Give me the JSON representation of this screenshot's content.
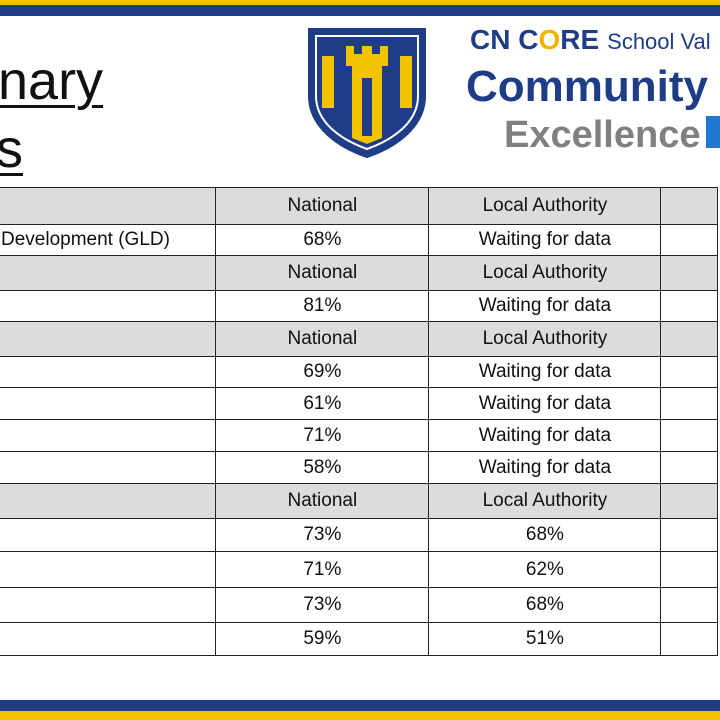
{
  "title": {
    "line1": "nary",
    "line2": "s"
  },
  "brand": {
    "line1_c": "CN C",
    "line1_o": "O",
    "line1_re": "RE",
    "line1_rest": "School Val",
    "line2": "Community",
    "line3": "Excellence",
    "colors": {
      "navy": "#1f3d86",
      "gold": "#f3c300",
      "grey": "#808080",
      "accent_blue": "#1f78d1"
    }
  },
  "table": {
    "rows": [
      {
        "type": "header",
        "label": "",
        "national": "National",
        "la": "Local Authority",
        "school": ""
      },
      {
        "type": "data",
        "label": "Development (GLD)",
        "national": "68%",
        "la": "Waiting for data",
        "school": ""
      },
      {
        "type": "header",
        "label": "",
        "national": "National",
        "la": "Local Authority",
        "school": ""
      },
      {
        "type": "data",
        "label": "",
        "national": "81%",
        "la": "Waiting for data",
        "school": ""
      },
      {
        "type": "header",
        "label": "",
        "national": "National",
        "la": "Local Authority",
        "school": ""
      },
      {
        "type": "data",
        "label": "",
        "national": "69%",
        "la": "Waiting for data",
        "school": ""
      },
      {
        "type": "data",
        "label": "",
        "national": "61%",
        "la": "Waiting for data",
        "school": ""
      },
      {
        "type": "data",
        "label": "",
        "national": "71%",
        "la": "Waiting for data",
        "school": ""
      },
      {
        "type": "data",
        "label": "",
        "national": "58%",
        "la": "Waiting for data",
        "school": ""
      },
      {
        "type": "header",
        "label": "",
        "national": "National",
        "la": "Local Authority",
        "school": ""
      },
      {
        "type": "data",
        "label": "",
        "national": "73%",
        "la": "68%",
        "school": ""
      },
      {
        "type": "data",
        "label": "",
        "national": "71%",
        "la": "62%",
        "school": ""
      },
      {
        "type": "data",
        "label": "",
        "national": "73%",
        "la": "68%",
        "school": ""
      },
      {
        "type": "data",
        "label": "",
        "national": "59%",
        "la": "51%",
        "school": ""
      }
    ]
  }
}
